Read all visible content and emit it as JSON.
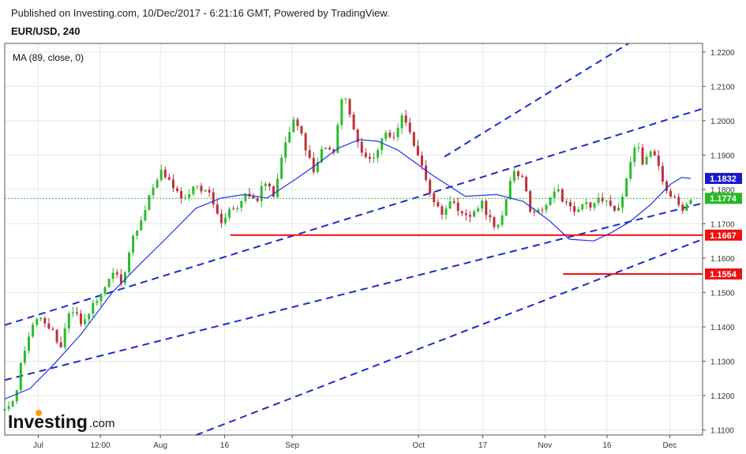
{
  "header": {
    "published": "Published on Investing.com, 10/Dec/2017 - 6:21:16 GMT, Powered by TradingView.",
    "symbol": "EUR/USD, 240"
  },
  "indicator_label": "MA (89, close, 0)",
  "logo": {
    "main": "Investing",
    "suffix": ".com"
  },
  "colors": {
    "up": "#2dbb2d",
    "down": "#c0303a",
    "ma": "#2233ee",
    "channel": "#1a2ccc",
    "support": "#ee1111",
    "tag_ma": "#1a1acc",
    "tag_last": "#22bb22",
    "tag_support": "#ee1111",
    "last_line": "#33bb33",
    "grid": "#e6e6e6"
  },
  "chart_data": {
    "type": "candlestick",
    "symbol": "EUR/USD",
    "timeframe": "240",
    "y_axis": {
      "range": [
        1.1085,
        1.2225
      ],
      "ticks": [
        {
          "v": 1.22,
          "label": "1.2200"
        },
        {
          "v": 1.21,
          "label": "1.2100"
        },
        {
          "v": 1.2,
          "label": "1.2000"
        },
        {
          "v": 1.19,
          "label": "1.1900"
        },
        {
          "v": 1.18,
          "label": "1.1800"
        },
        {
          "v": 1.17,
          "label": "1.1700"
        },
        {
          "v": 1.16,
          "label": "1.1600"
        },
        {
          "v": 1.15,
          "label": "1.1500"
        },
        {
          "v": 1.14,
          "label": "1.1400"
        },
        {
          "v": 1.13,
          "label": "1.1300"
        },
        {
          "v": 1.12,
          "label": "1.1200"
        },
        {
          "v": 1.11,
          "label": "1.1100"
        }
      ]
    },
    "x_axis": {
      "range": [
        0,
        100
      ],
      "ticks": [
        {
          "t": 4.8,
          "label": "Jul"
        },
        {
          "t": 13.7,
          "label": "12:00"
        },
        {
          "t": 22.3,
          "label": "Aug"
        },
        {
          "t": 31.5,
          "label": "16"
        },
        {
          "t": 41.2,
          "label": "Sep"
        },
        {
          "t": 59.3,
          "label": "Oct"
        },
        {
          "t": 68.5,
          "label": "17"
        },
        {
          "t": 77.4,
          "label": "Nov"
        },
        {
          "t": 86.3,
          "label": "16"
        },
        {
          "t": 95.3,
          "label": "Dec"
        }
      ]
    },
    "price_tags": [
      {
        "name": "MA(89)",
        "value": 1.1832,
        "label": "1.1832",
        "kind": "ma"
      },
      {
        "name": "Last",
        "value": 1.1774,
        "label": "1.1774",
        "kind": "last"
      },
      {
        "name": "Support",
        "value": 1.1667,
        "label": "1.1667",
        "kind": "support"
      },
      {
        "name": "Support",
        "value": 1.1554,
        "label": "1.1554",
        "kind": "support"
      }
    ],
    "support_levels": [
      {
        "value": 1.1667,
        "t_start": 32.3
      },
      {
        "value": 1.1554,
        "t_start": 80.0
      }
    ],
    "channel_lines": [
      {
        "t": [
          0,
          100
        ],
        "y": [
          1.1405,
          1.2035
        ]
      },
      {
        "t": [
          0,
          100
        ],
        "y": [
          1.1245,
          1.176
        ]
      },
      {
        "t": [
          27.4,
          100
        ],
        "y": [
          1.1085,
          1.1655
        ]
      },
      {
        "t": [
          63,
          89.4
        ],
        "y": [
          1.1895,
          1.2225
        ]
      }
    ],
    "ma_line": {
      "t": [
        0,
        3.6,
        7,
        11,
        15.4,
        19,
        23,
        27.4,
        31,
        34.3,
        37.6,
        41.7,
        44.5,
        47.8,
        50.8,
        53.5,
        56.3,
        61.4,
        66,
        70.5,
        74.3,
        78,
        80.9,
        84.4,
        87,
        89.5,
        92.5,
        95.4,
        97,
        98.3
      ],
      "y": [
        1.119,
        1.122,
        1.129,
        1.138,
        1.15,
        1.1575,
        1.1655,
        1.1745,
        1.1775,
        1.1785,
        1.1775,
        1.183,
        1.187,
        1.192,
        1.1945,
        1.194,
        1.1915,
        1.184,
        1.178,
        1.1785,
        1.1765,
        1.171,
        1.1655,
        1.165,
        1.1675,
        1.1705,
        1.1755,
        1.1815,
        1.1835,
        1.1832
      ]
    },
    "price_path": {
      "t": [
        0,
        1.5,
        2.5,
        4.8,
        6.7,
        8,
        9.5,
        11,
        12.5,
        14.2,
        15.7,
        16.8,
        18.2,
        19.5,
        21,
        22.5,
        24,
        25.6,
        27,
        29.4,
        31,
        32.3,
        33.6,
        34.7,
        36,
        37.2,
        38.5,
        39.2,
        40,
        41.7,
        43.5,
        44.3,
        45.5,
        47,
        48.5,
        50,
        51.5,
        53.3,
        54.3,
        55.6,
        57,
        58.3,
        59.8,
        61,
        62.4,
        64.2,
        65.5,
        66.7,
        68.3,
        70,
        71.5,
        72.5,
        73.3,
        74.5,
        75.5,
        77,
        79,
        80.4,
        81.7,
        83.2,
        84.1,
        85.2,
        86.5,
        87.5,
        88.5,
        89.6,
        90.6,
        91.5,
        92.8,
        94,
        95,
        96.2,
        97.3,
        98.3
      ],
      "y": [
        1.1165,
        1.1195,
        1.132,
        1.144,
        1.139,
        1.1345,
        1.146,
        1.141,
        1.146,
        1.15,
        1.157,
        1.151,
        1.165,
        1.171,
        1.179,
        1.1855,
        1.181,
        1.176,
        1.1805,
        1.179,
        1.171,
        1.174,
        1.176,
        1.179,
        1.176,
        1.183,
        1.178,
        1.183,
        1.1925,
        1.201,
        1.19,
        1.1855,
        1.193,
        1.19,
        1.208,
        1.1985,
        1.189,
        1.1905,
        1.1965,
        1.195,
        1.202,
        1.195,
        1.1875,
        1.178,
        1.173,
        1.177,
        1.173,
        1.172,
        1.1765,
        1.169,
        1.1725,
        1.184,
        1.1855,
        1.1815,
        1.172,
        1.174,
        1.181,
        1.1755,
        1.174,
        1.176,
        1.1755,
        1.178,
        1.1765,
        1.1735,
        1.1775,
        1.187,
        1.194,
        1.187,
        1.1915,
        1.184,
        1.1795,
        1.177,
        1.1735,
        1.1774
      ]
    },
    "ohlc_notes": "Approximately 170 four-hour candles from early July to December 8, 2017; OHLC values estimated from the price path."
  }
}
